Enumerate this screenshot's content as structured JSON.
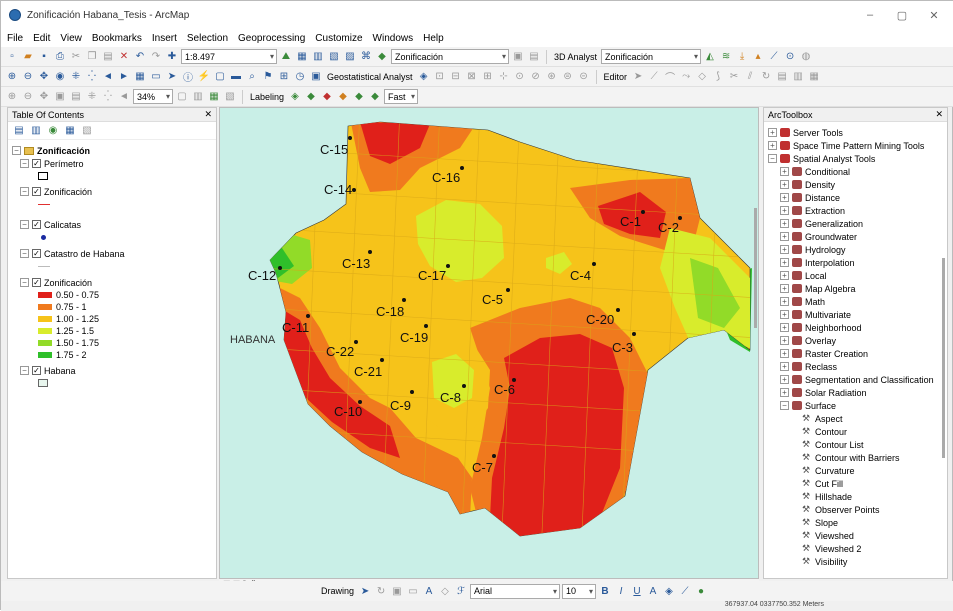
{
  "window": {
    "title": "Zonificación Habana_Tesis - ArcMap",
    "controls": [
      "–",
      "▢",
      "✕"
    ]
  },
  "menu": [
    "File",
    "Edit",
    "View",
    "Bookmarks",
    "Insert",
    "Selection",
    "Geoprocessing",
    "Customize",
    "Windows",
    "Help"
  ],
  "toolbar": {
    "scale": "1:8.497",
    "layer_combo": "Zonificación",
    "analyst_3d": "3D Analyst",
    "analyst_layer": "Zonificación",
    "geostatistical": "Geostatistical Analyst",
    "editor": "Editor",
    "zoom_pct": "34%",
    "labeling": "Labeling",
    "fast": "Fast"
  },
  "toc": {
    "title": "Table Of Contents",
    "close": "✕",
    "group": "Zonificación",
    "layers": [
      {
        "name": "Perímetro"
      },
      {
        "name": "Zonificación"
      },
      {
        "name": "Calicatas"
      },
      {
        "name": "Catastro de Habana"
      },
      {
        "name": "Zonificación"
      },
      {
        "name": "Habana"
      }
    ],
    "classes": [
      {
        "label": "0.50 - 0.75",
        "color": "#e0201a"
      },
      {
        "label": "0.75 - 1",
        "color": "#f07a1e"
      },
      {
        "label": "1.00 - 1.25",
        "color": "#f6c31a"
      },
      {
        "label": "1.25 - 1.5",
        "color": "#d8ec2c"
      },
      {
        "label": "1.50 - 1.75",
        "color": "#92db28"
      },
      {
        "label": "1.75 - 2",
        "color": "#2fbf2a"
      }
    ]
  },
  "map": {
    "habana_label": "HABANA",
    "points": [
      {
        "name": "C-1"
      },
      {
        "name": "C-2"
      },
      {
        "name": "C-3"
      },
      {
        "name": "C-4"
      },
      {
        "name": "C-5"
      },
      {
        "name": "C-6"
      },
      {
        "name": "C-7"
      },
      {
        "name": "C-8"
      },
      {
        "name": "C-9"
      },
      {
        "name": "C-10"
      },
      {
        "name": "C-11"
      },
      {
        "name": "C-12"
      },
      {
        "name": "C-13"
      },
      {
        "name": "C-14"
      },
      {
        "name": "C-15"
      },
      {
        "name": "C-16"
      },
      {
        "name": "C-17"
      },
      {
        "name": "C-18"
      },
      {
        "name": "C-19"
      },
      {
        "name": "C-20"
      },
      {
        "name": "C-21"
      },
      {
        "name": "C-22"
      }
    ]
  },
  "arctoolbox": {
    "title": "ArcToolbox",
    "close": "✕",
    "items": [
      "Server Tools",
      "Space Time Pattern Mining Tools",
      "Spatial Analyst Tools"
    ],
    "sub": [
      "Conditional",
      "Density",
      "Distance",
      "Extraction",
      "Generalization",
      "Groundwater",
      "Hydrology",
      "Interpolation",
      "Local",
      "Map Algebra",
      "Math",
      "Multivariate",
      "Neighborhood",
      "Overlay",
      "Raster Creation",
      "Reclass",
      "Segmentation and Classification",
      "Solar Radiation",
      "Surface"
    ],
    "surface_tools": [
      "Aspect",
      "Contour",
      "Contour List",
      "Contour with Barriers",
      "Curvature",
      "Cut Fill",
      "Hillshade",
      "Observer Points",
      "Slope",
      "Viewshed",
      "Viewshed 2",
      "Visibility"
    ]
  },
  "drawing": {
    "label": "Drawing",
    "font": "Arial",
    "size": "10"
  },
  "status": {
    "coords": "367937.04  0337750.352 Meters"
  }
}
